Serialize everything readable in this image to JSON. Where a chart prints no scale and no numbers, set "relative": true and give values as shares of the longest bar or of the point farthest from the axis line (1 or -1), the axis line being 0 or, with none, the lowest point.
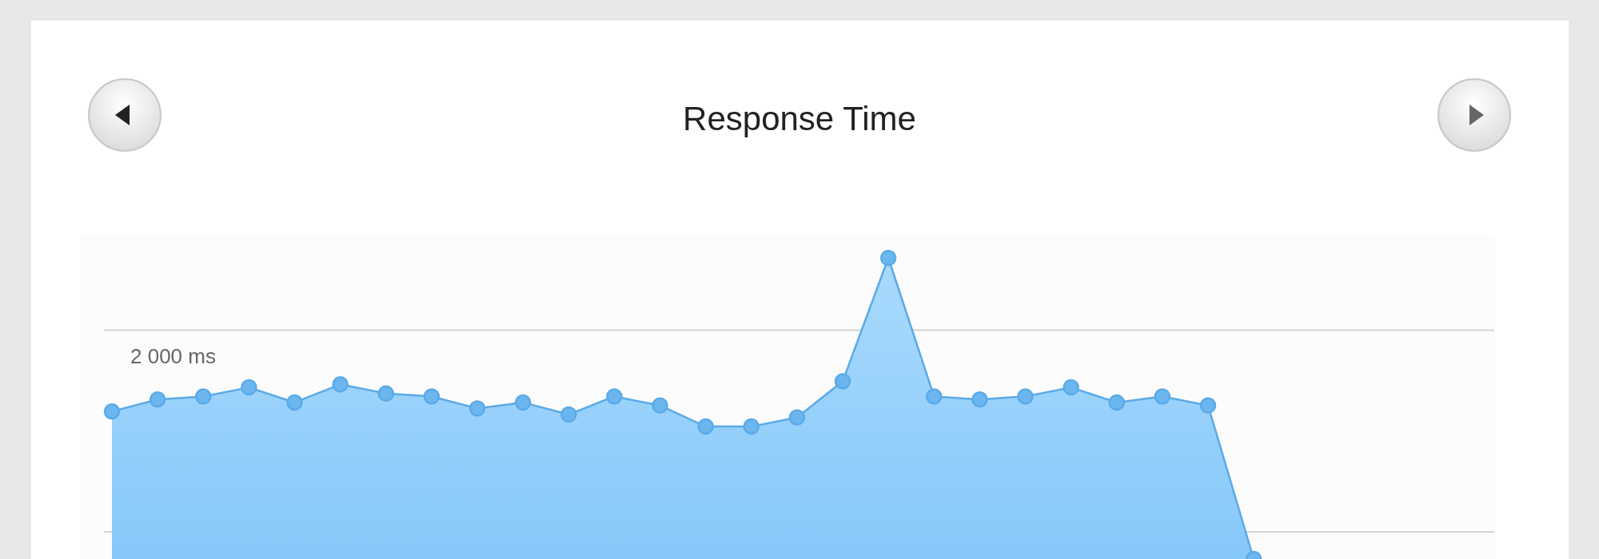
{
  "chart_data": {
    "type": "area",
    "title": "Response Time",
    "relative": true,
    "categories": [
      null,
      null,
      null,
      null,
      null,
      null,
      null,
      null,
      null,
      null,
      null,
      null,
      null,
      null,
      null,
      null,
      null,
      null,
      null,
      null,
      null,
      null,
      null,
      null,
      null,
      null
    ],
    "series": [
      {
        "color": "#5aaae8",
        "values": [
          0.49,
          0.53,
          0.54,
          0.57,
          0.52,
          0.58,
          0.55,
          0.54,
          0.5,
          0.52,
          0.48,
          0.54,
          0.51,
          0.44,
          0.44,
          0.47,
          0.59,
          1,
          0.54,
          0.53,
          0.54,
          0.57,
          0.52,
          0.54,
          0.51,
          0
        ]
      }
    ],
    "marker": "circle",
    "ref_lines": [
      {
        "axis": "y",
        "value": 0.76,
        "label": "2 000 ms",
        "color": "#d4d4d4"
      },
      {
        "axis": "y",
        "value": 0.09,
        "color": "#d4d4d4"
      }
    ]
  }
}
